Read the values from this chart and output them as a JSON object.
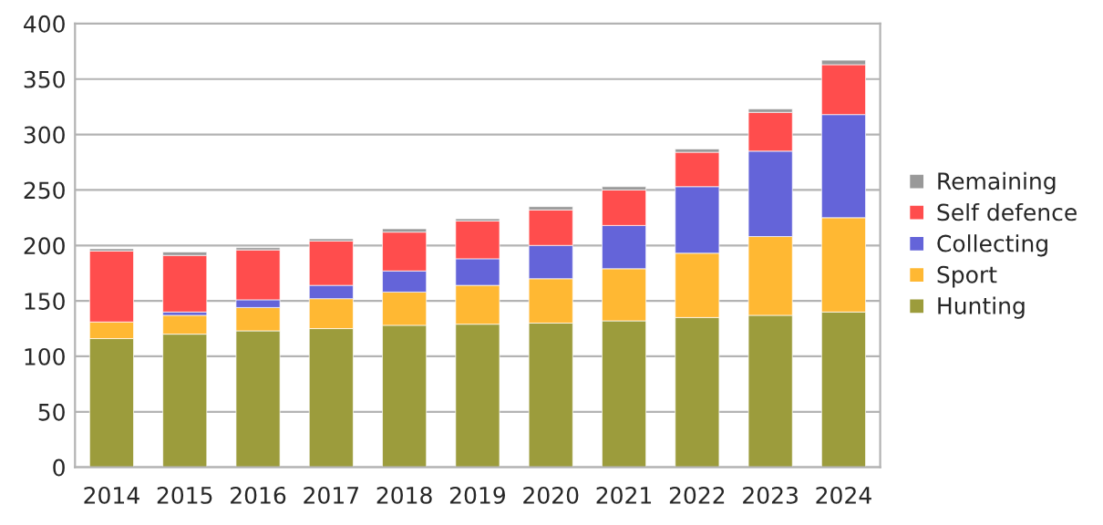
{
  "chart_data": {
    "type": "bar",
    "stacked": true,
    "categories": [
      "2014",
      "2015",
      "2016",
      "2017",
      "2018",
      "2019",
      "2020",
      "2021",
      "2022",
      "2023",
      "2024"
    ],
    "series": [
      {
        "name": "Hunting",
        "color": "#9c9c3c",
        "values": [
          116,
          120,
          123,
          125,
          128,
          129,
          130,
          132,
          135,
          137,
          140
        ]
      },
      {
        "name": "Sport",
        "color": "#ffb833",
        "values": [
          15,
          17,
          21,
          27,
          30,
          35,
          40,
          47,
          58,
          71,
          85
        ]
      },
      {
        "name": "Collecting",
        "color": "#6464d9",
        "values": [
          null,
          3,
          7,
          12,
          19,
          24,
          30,
          39,
          60,
          77,
          93
        ]
      },
      {
        "name": "Self defence",
        "color": "#ff4d4d",
        "values": [
          64,
          51,
          45,
          40,
          35,
          34,
          32,
          32,
          31,
          35,
          45
        ]
      },
      {
        "name": "Remaining",
        "color": "#999999",
        "values": [
          2,
          3,
          2,
          2,
          3,
          2,
          3,
          3,
          3,
          3,
          4
        ]
      }
    ],
    "ylim": [
      0,
      400
    ],
    "yticks": [
      0,
      50,
      100,
      150,
      200,
      250,
      300,
      350,
      400
    ],
    "grid": "y",
    "legend": "right"
  }
}
